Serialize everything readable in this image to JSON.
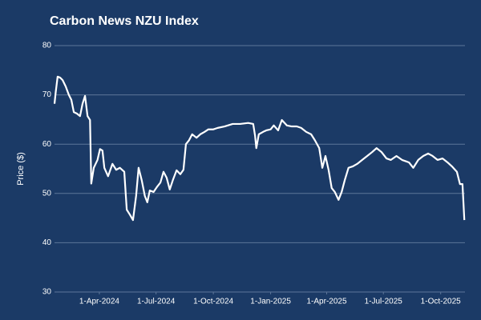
{
  "chart_data": {
    "type": "line",
    "title": "Carbon News NZU Index",
    "y_label": "Price ($)",
    "x": [
      "2024-01-20",
      "2024-01-22",
      "2024-01-25",
      "2024-01-29",
      "2024-02-02",
      "2024-02-07",
      "2024-02-12",
      "2024-02-16",
      "2024-02-20",
      "2024-02-25",
      "2024-03-01",
      "2024-03-05",
      "2024-03-09",
      "2024-03-13",
      "2024-03-17",
      "2024-03-19",
      "2024-03-23",
      "2024-03-29",
      "2024-04-02",
      "2024-04-06",
      "2024-04-09",
      "2024-04-15",
      "2024-04-22",
      "2024-04-28",
      "2024-05-04",
      "2024-05-11",
      "2024-05-15",
      "2024-05-20",
      "2024-05-25",
      "2024-05-30",
      "2024-06-03",
      "2024-06-08",
      "2024-06-13",
      "2024-06-17",
      "2024-06-21",
      "2024-06-27",
      "2024-07-03",
      "2024-07-08",
      "2024-07-13",
      "2024-07-18",
      "2024-07-23",
      "2024-07-28",
      "2024-08-03",
      "2024-08-09",
      "2024-08-14",
      "2024-08-18",
      "2024-08-23",
      "2024-08-28",
      "2024-09-04",
      "2024-09-10",
      "2024-09-17",
      "2024-09-23",
      "2024-10-01",
      "2024-10-08",
      "2024-10-19",
      "2024-11-01",
      "2024-11-13",
      "2024-11-26",
      "2024-12-04",
      "2024-12-07",
      "2024-12-09",
      "2024-12-13",
      "2024-12-20",
      "2024-12-25",
      "2025-01-01",
      "2025-01-06",
      "2025-01-13",
      "2025-01-19",
      "2025-01-27",
      "2025-02-04",
      "2025-02-12",
      "2025-02-19",
      "2025-02-27",
      "2025-03-07",
      "2025-03-13",
      "2025-03-20",
      "2025-03-25",
      "2025-03-30",
      "2025-04-04",
      "2025-04-09",
      "2025-04-14",
      "2025-04-20",
      "2025-04-25",
      "2025-04-30",
      "2025-05-06",
      "2025-05-13",
      "2025-05-20",
      "2025-05-28",
      "2025-06-05",
      "2025-06-13",
      "2025-06-20",
      "2025-06-28",
      "2025-07-06",
      "2025-07-13",
      "2025-07-22",
      "2025-07-31",
      "2025-08-11",
      "2025-08-18",
      "2025-08-26",
      "2025-09-03",
      "2025-09-11",
      "2025-09-18",
      "2025-09-26",
      "2025-10-04",
      "2025-10-12",
      "2025-10-19",
      "2025-10-27",
      "2025-11-01",
      "2025-11-05",
      "2025-11-08"
    ],
    "series": [
      {
        "name": "NZU",
        "color": "#ffffff",
        "values": [
          68.2,
          70.6,
          73.7,
          73.5,
          73,
          71.7,
          70,
          69,
          66.5,
          66.2,
          65.7,
          68.2,
          69.8,
          65.7,
          64.9,
          52,
          55.2,
          56.8,
          59,
          58.7,
          55.2,
          53.5,
          56,
          54.8,
          55.2,
          54.4,
          46.7,
          45.7,
          44.6,
          49.5,
          55.2,
          52.7,
          49.5,
          48.2,
          50.6,
          50.3,
          51.4,
          52.2,
          54.4,
          53.2,
          50.8,
          52.7,
          54.7,
          53.9,
          54.8,
          60,
          60.8,
          62,
          61.3,
          62,
          62.5,
          63,
          63,
          63.3,
          63.6,
          64.1,
          64.1,
          64.3,
          64.1,
          61.7,
          59.2,
          62,
          62.5,
          62.8,
          63,
          63.8,
          62.8,
          64.9,
          63.8,
          63.6,
          63.6,
          63.3,
          62.5,
          62,
          60.8,
          59.2,
          55.2,
          57.6,
          54.8,
          51.1,
          50.3,
          48.7,
          50.3,
          52.7,
          55.2,
          55.5,
          56,
          56.8,
          57.6,
          58.4,
          59.2,
          58.4,
          57.1,
          56.8,
          57.6,
          56.8,
          56.3,
          55.2,
          56.8,
          57.6,
          58.1,
          57.6,
          56.8,
          57.1,
          56.3,
          55.5,
          54.4,
          51.9,
          51.9,
          44.6
        ]
      }
    ],
    "xlim": [
      "2024-01-20",
      "2025-11-09"
    ],
    "xticks": [
      {
        "value": "2024-04-01",
        "label": "1-Apr-2024"
      },
      {
        "value": "2024-07-01",
        "label": "1-Jul-2024"
      },
      {
        "value": "2024-10-01",
        "label": "1-Oct-2024"
      },
      {
        "value": "2025-01-01",
        "label": "1-Jan-2025"
      },
      {
        "value": "2025-04-01",
        "label": "1-Apr-2025"
      },
      {
        "value": "2025-07-01",
        "label": "1-Jul-2025"
      },
      {
        "value": "2025-10-01",
        "label": "1-Oct-2025"
      }
    ],
    "ylim": [
      30,
      80
    ],
    "yticks": [
      30,
      40,
      50,
      60,
      70,
      80
    ],
    "grid": true
  }
}
